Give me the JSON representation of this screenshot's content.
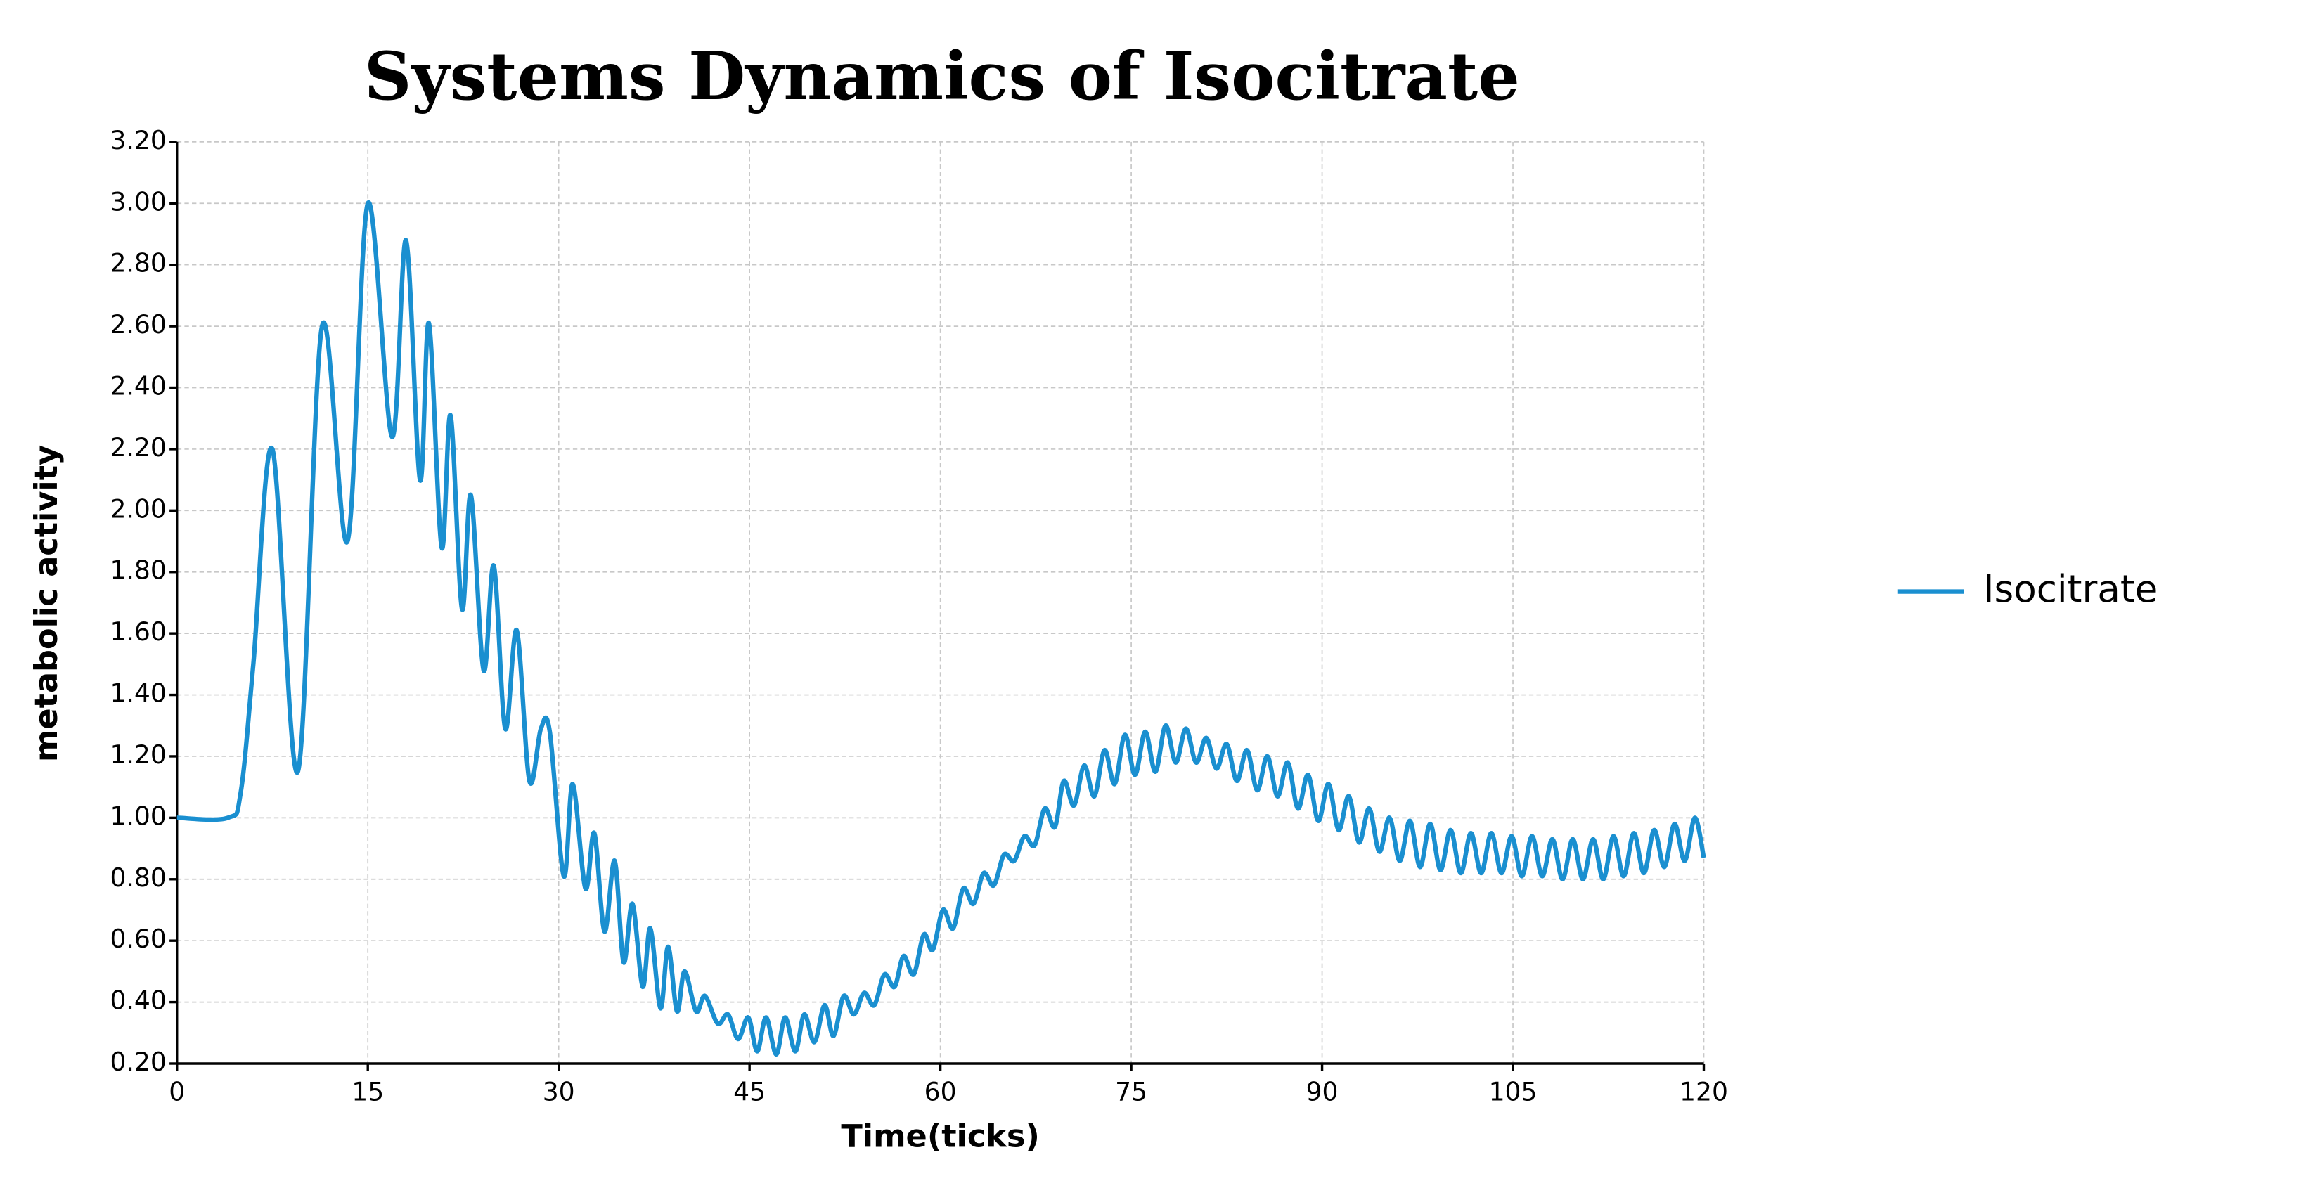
{
  "chart_data": {
    "type": "line",
    "title": "Systems Dynamics of Isocitrate",
    "x_label": "Time(ticks)",
    "y_label": "metabolic activity",
    "xlim": [
      0,
      120
    ],
    "ylim": [
      0.2,
      3.2
    ],
    "xticks": [
      0,
      15,
      30,
      45,
      60,
      75,
      90,
      105,
      120
    ],
    "yticks": [
      {
        "value": 0.2,
        "label": "0.20"
      },
      {
        "value": 0.4,
        "label": "0.40"
      },
      {
        "value": 0.6,
        "label": "0.60"
      },
      {
        "value": 0.8,
        "label": "0.80"
      },
      {
        "value": 1.0,
        "label": "1.00"
      },
      {
        "value": 1.2,
        "label": "1.20"
      },
      {
        "value": 1.4,
        "label": "1.40"
      },
      {
        "value": 1.6,
        "label": "1.60"
      },
      {
        "value": 1.8,
        "label": "1.80"
      },
      {
        "value": 2.0,
        "label": "2.00"
      },
      {
        "value": 2.2,
        "label": "2.20"
      },
      {
        "value": 2.4,
        "label": "2.40"
      },
      {
        "value": 2.6,
        "label": "2.60"
      },
      {
        "value": 2.8,
        "label": "2.80"
      },
      {
        "value": 3.0,
        "label": "3.00"
      },
      {
        "value": 3.2,
        "label": "3.20"
      }
    ],
    "grid": true,
    "legend": "right",
    "x": [
      0,
      4,
      5,
      6,
      7.5,
      9.5,
      11.4,
      13.4,
      15.0,
      16.9,
      18.0,
      19.1,
      19.8,
      20.8,
      21.5,
      22.4,
      23.1,
      24.1,
      24.9,
      25.8,
      26.7,
      27.7,
      28.6,
      29.3,
      30.4,
      31.1,
      32.1,
      32.8,
      33.6,
      34.4,
      35.1,
      35.8,
      36.6,
      37.2,
      38.0,
      38.6,
      39.3,
      39.9,
      40.8,
      41.5,
      42.5,
      43.3,
      44.1,
      44.9,
      45.6,
      46.3,
      47.1,
      47.8,
      48.6,
      49.3,
      50.1,
      50.9,
      51.6,
      52.4,
      53.2,
      54.0,
      54.8,
      55.6,
      56.4,
      57.1,
      57.9,
      58.7,
      59.4,
      60.2,
      61.0,
      61.8,
      62.6,
      63.4,
      64.2,
      65.0,
      65.8,
      66.6,
      67.4,
      68.2,
      69.0,
      69.7,
      70.5,
      71.3,
      72.1,
      72.9,
      73.7,
      74.5,
      75.3,
      76.1,
      76.9,
      77.7,
      78.5,
      79.3,
      80.1,
      80.9,
      81.7,
      82.5,
      83.3,
      84.1,
      84.9,
      85.7,
      86.5,
      87.3,
      88.1,
      88.9,
      89.7,
      90.5,
      91.3,
      92.1,
      92.9,
      93.7,
      94.5,
      95.3,
      96.1,
      96.9,
      97.7,
      98.5,
      99.3,
      100.1,
      100.9,
      101.7,
      102.5,
      103.3,
      104.1,
      104.9,
      105.7,
      106.5,
      107.3,
      108.1,
      108.9,
      109.7,
      110.5,
      111.3,
      112.1,
      112.9,
      113.7,
      114.5,
      115.3,
      116.1,
      116.9,
      117.7,
      118.5,
      119.3,
      120
    ],
    "series": [
      {
        "name": "Isocitrate",
        "color": "#1a8fd0",
        "values": [
          1.0,
          1.0,
          1.08,
          1.5,
          2.2,
          1.15,
          2.6,
          1.9,
          3.0,
          2.24,
          2.88,
          2.1,
          2.61,
          1.88,
          2.31,
          1.68,
          2.05,
          1.48,
          1.82,
          1.29,
          1.61,
          1.12,
          1.29,
          1.28,
          0.81,
          1.11,
          0.77,
          0.95,
          0.63,
          0.86,
          0.53,
          0.72,
          0.45,
          0.64,
          0.38,
          0.58,
          0.37,
          0.5,
          0.37,
          0.42,
          0.33,
          0.36,
          0.28,
          0.35,
          0.24,
          0.35,
          0.23,
          0.35,
          0.24,
          0.36,
          0.27,
          0.39,
          0.29,
          0.42,
          0.36,
          0.43,
          0.39,
          0.49,
          0.45,
          0.55,
          0.49,
          0.62,
          0.57,
          0.7,
          0.64,
          0.77,
          0.72,
          0.82,
          0.78,
          0.88,
          0.86,
          0.94,
          0.91,
          1.03,
          0.97,
          1.12,
          1.04,
          1.17,
          1.07,
          1.22,
          1.11,
          1.27,
          1.14,
          1.28,
          1.15,
          1.3,
          1.18,
          1.29,
          1.18,
          1.26,
          1.16,
          1.24,
          1.12,
          1.22,
          1.09,
          1.2,
          1.07,
          1.18,
          1.03,
          1.14,
          0.99,
          1.11,
          0.96,
          1.07,
          0.92,
          1.03,
          0.89,
          1.0,
          0.86,
          0.99,
          0.84,
          0.98,
          0.83,
          0.96,
          0.82,
          0.95,
          0.82,
          0.95,
          0.82,
          0.94,
          0.81,
          0.94,
          0.81,
          0.93,
          0.8,
          0.93,
          0.8,
          0.93,
          0.8,
          0.94,
          0.81,
          0.95,
          0.82,
          0.96,
          0.84,
          0.98,
          0.86,
          1.0,
          0.87
        ]
      }
    ]
  }
}
